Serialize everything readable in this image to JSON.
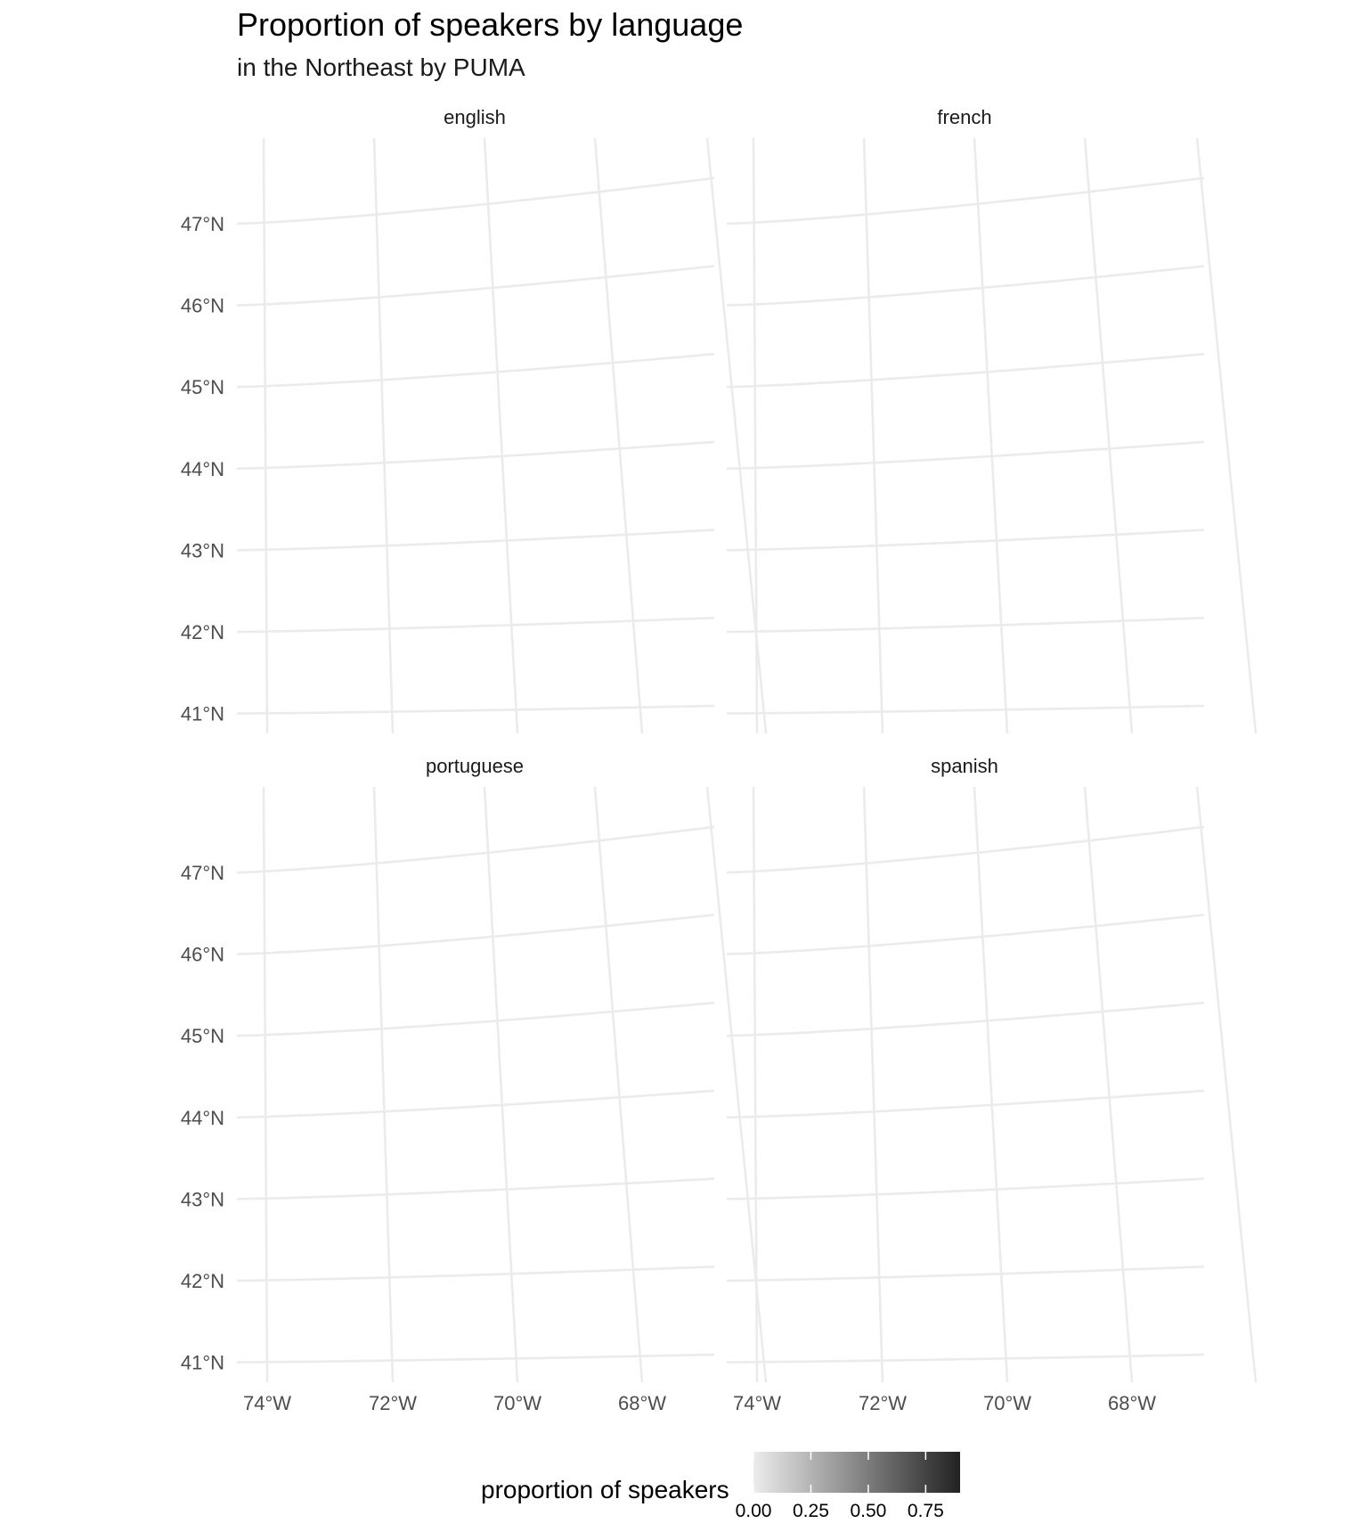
{
  "title": "Proportion of speakers by language",
  "subtitle": "in the Northeast by PUMA",
  "chart_data": {
    "type": "map",
    "panels": [
      "english",
      "french",
      "portuguese",
      "spanish"
    ],
    "latitude_ticks": [
      {
        "value": 47,
        "label": "47°N"
      },
      {
        "value": 46,
        "label": "46°N"
      },
      {
        "value": 45,
        "label": "45°N"
      },
      {
        "value": 44,
        "label": "44°N"
      },
      {
        "value": 43,
        "label": "43°N"
      },
      {
        "value": 42,
        "label": "42°N"
      },
      {
        "value": 41,
        "label": "41°N"
      }
    ],
    "longitude_ticks": [
      {
        "value": -74,
        "label": "74°W"
      },
      {
        "value": -72,
        "label": "72°W"
      },
      {
        "value": -70,
        "label": "70°W"
      },
      {
        "value": -68,
        "label": "68°W"
      }
    ],
    "fill_legend": {
      "title": "proportion of speakers",
      "min": 0,
      "max": 0.9,
      "ticks": [
        {
          "value": 0.0,
          "label": "0.00"
        },
        {
          "value": 0.25,
          "label": "0.25"
        },
        {
          "value": 0.5,
          "label": "0.50"
        },
        {
          "value": 0.75,
          "label": "0.75"
        }
      ],
      "low_color": "#ececec",
      "high_color": "#222222"
    },
    "grid": true,
    "legend_position": "bottom"
  }
}
